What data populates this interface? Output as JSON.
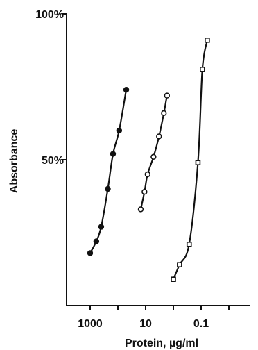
{
  "chart_data": {
    "type": "line",
    "title": "",
    "xlabel": "Protein, µg/ml",
    "ylabel": "Absorbance",
    "x_scale": "log",
    "x_reversed": true,
    "x_ticks": [
      {
        "value": 1000,
        "label": "1000"
      },
      {
        "value": 10,
        "label": "10"
      },
      {
        "value": 0.1,
        "label": "0.1"
      }
    ],
    "y_ticks": [
      {
        "value": 50,
        "label": "50%"
      },
      {
        "value": 100,
        "label": "100%"
      }
    ],
    "ylim": [
      0,
      100
    ],
    "grid": false,
    "legend": "none",
    "series": [
      {
        "marker": "filled-circle",
        "points": [
          {
            "x": 1000,
            "y": 18
          },
          {
            "x": 600,
            "y": 22
          },
          {
            "x": 400,
            "y": 27
          },
          {
            "x": 230,
            "y": 40
          },
          {
            "x": 150,
            "y": 52
          },
          {
            "x": 90,
            "y": 60
          },
          {
            "x": 50,
            "y": 74
          }
        ]
      },
      {
        "marker": "open-circle",
        "points": [
          {
            "x": 15,
            "y": 33
          },
          {
            "x": 11,
            "y": 39
          },
          {
            "x": 8.5,
            "y": 45
          },
          {
            "x": 5.2,
            "y": 51
          },
          {
            "x": 3.3,
            "y": 58
          },
          {
            "x": 2.2,
            "y": 66
          },
          {
            "x": 1.7,
            "y": 72
          }
        ]
      },
      {
        "marker": "open-square",
        "points": [
          {
            "x": 1.0,
            "y": 9
          },
          {
            "x": 0.6,
            "y": 14
          },
          {
            "x": 0.27,
            "y": 21
          },
          {
            "x": 0.13,
            "y": 49
          },
          {
            "x": 0.09,
            "y": 81
          },
          {
            "x": 0.06,
            "y": 91
          }
        ]
      }
    ]
  }
}
